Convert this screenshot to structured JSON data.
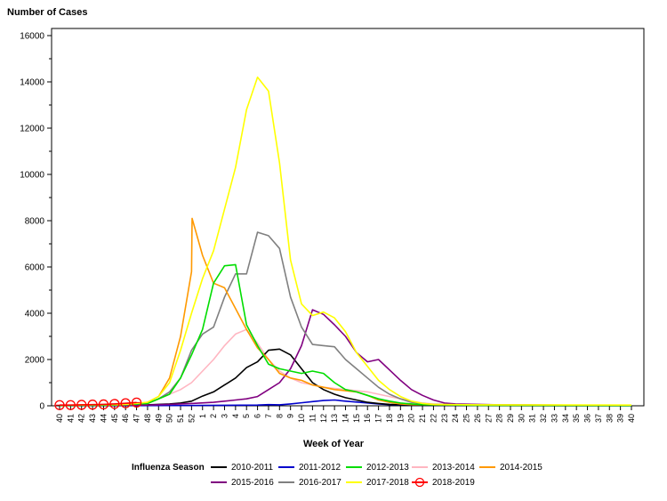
{
  "chart_data": {
    "type": "line",
    "ylabel": "Number of Cases",
    "xlabel": "Week of Year",
    "ylim": [
      0,
      16000
    ],
    "yticks": [
      0,
      2000,
      4000,
      6000,
      8000,
      10000,
      12000,
      14000,
      16000
    ],
    "grid": false,
    "legend_title": "Influenza Season",
    "legend_placement": "bottom",
    "weeks": [
      "40",
      "41",
      "42",
      "43",
      "44",
      "45",
      "46",
      "47",
      "48",
      "49",
      "50",
      "51",
      "52",
      "1",
      "2",
      "3",
      "4",
      "5",
      "6",
      "7",
      "8",
      "9",
      "10",
      "11",
      "12",
      "13",
      "14",
      "15",
      "16",
      "17",
      "18",
      "19",
      "20",
      "21",
      "22",
      "23",
      "24",
      "25",
      "26",
      "27",
      "28",
      "29",
      "30",
      "31",
      "32",
      "33",
      "34",
      "35",
      "36",
      "37",
      "38",
      "39",
      "40"
    ],
    "series": [
      {
        "name": "2010-2011",
        "color": "#000000",
        "values": [
          [
            0,
            5
          ],
          [
            3,
            10
          ],
          [
            6,
            20
          ],
          [
            8,
            40
          ],
          [
            9,
            60
          ],
          [
            10,
            80
          ],
          [
            11,
            120
          ],
          [
            12,
            200
          ],
          [
            13,
            420
          ],
          [
            14,
            600
          ],
          [
            15,
            900
          ],
          [
            16,
            1200
          ],
          [
            17,
            1650
          ],
          [
            18,
            1900
          ],
          [
            19,
            2400
          ],
          [
            20,
            2450
          ],
          [
            21,
            2200
          ],
          [
            22,
            1600
          ],
          [
            23,
            1000
          ],
          [
            24,
            700
          ],
          [
            25,
            500
          ],
          [
            26,
            350
          ],
          [
            27,
            250
          ],
          [
            28,
            150
          ],
          [
            29,
            100
          ],
          [
            30,
            60
          ],
          [
            31,
            40
          ],
          [
            32,
            30
          ],
          [
            33,
            20
          ],
          [
            38,
            10
          ],
          [
            52,
            5
          ]
        ]
      },
      {
        "name": "2011-2012",
        "color": "#0000cc",
        "values": [
          [
            0,
            5
          ],
          [
            10,
            10
          ],
          [
            15,
            20
          ],
          [
            18,
            30
          ],
          [
            19,
            50
          ],
          [
            20,
            40
          ],
          [
            21,
            80
          ],
          [
            22,
            130
          ],
          [
            23,
            180
          ],
          [
            24,
            230
          ],
          [
            25,
            250
          ],
          [
            26,
            200
          ],
          [
            27,
            160
          ],
          [
            28,
            120
          ],
          [
            29,
            80
          ],
          [
            30,
            50
          ],
          [
            31,
            30
          ],
          [
            33,
            20
          ],
          [
            38,
            10
          ],
          [
            52,
            5
          ]
        ]
      },
      {
        "name": "2012-2013",
        "color": "#00dd00",
        "values": [
          [
            0,
            10
          ],
          [
            4,
            20
          ],
          [
            6,
            50
          ],
          [
            8,
            100
          ],
          [
            9,
            300
          ],
          [
            10,
            500
          ],
          [
            11,
            1200
          ],
          [
            12,
            2200
          ],
          [
            13,
            3300
          ],
          [
            14,
            5300
          ],
          [
            15,
            6050
          ],
          [
            16,
            6100
          ],
          [
            17,
            3500
          ],
          [
            18,
            2600
          ],
          [
            19,
            1800
          ],
          [
            20,
            1600
          ],
          [
            21,
            1500
          ],
          [
            22,
            1400
          ],
          [
            23,
            1500
          ],
          [
            24,
            1400
          ],
          [
            25,
            1000
          ],
          [
            26,
            700
          ],
          [
            27,
            600
          ],
          [
            28,
            450
          ],
          [
            29,
            300
          ],
          [
            30,
            200
          ],
          [
            31,
            120
          ],
          [
            32,
            80
          ],
          [
            33,
            50
          ],
          [
            38,
            20
          ],
          [
            52,
            10
          ]
        ]
      },
      {
        "name": "2013-2014",
        "color": "#ffb6c1",
        "values": [
          [
            0,
            20
          ],
          [
            6,
            50
          ],
          [
            8,
            100
          ],
          [
            9,
            300
          ],
          [
            10,
            500
          ],
          [
            11,
            700
          ],
          [
            12,
            1000
          ],
          [
            13,
            1500
          ],
          [
            14,
            2000
          ],
          [
            15,
            2600
          ],
          [
            16,
            3100
          ],
          [
            17,
            3300
          ],
          [
            18,
            2700
          ],
          [
            19,
            2000
          ],
          [
            20,
            1500
          ],
          [
            21,
            1200
          ],
          [
            22,
            1000
          ],
          [
            23,
            900
          ],
          [
            24,
            800
          ],
          [
            25,
            750
          ],
          [
            26,
            700
          ],
          [
            27,
            650
          ],
          [
            28,
            600
          ],
          [
            29,
            500
          ],
          [
            30,
            400
          ],
          [
            31,
            300
          ],
          [
            32,
            200
          ],
          [
            33,
            120
          ],
          [
            34,
            80
          ],
          [
            38,
            40
          ],
          [
            52,
            20
          ]
        ]
      },
      {
        "name": "2014-2015",
        "color": "#ff9900",
        "values": [
          [
            0,
            20
          ],
          [
            5,
            40
          ],
          [
            7,
            80
          ],
          [
            8,
            150
          ],
          [
            9,
            400
          ],
          [
            10,
            1200
          ],
          [
            11,
            3000
          ],
          [
            12,
            5800
          ],
          [
            12.05,
            8100
          ],
          [
            13,
            6500
          ],
          [
            14,
            5300
          ],
          [
            15,
            5100
          ],
          [
            16,
            4200
          ],
          [
            17,
            3300
          ],
          [
            18,
            2500
          ],
          [
            19,
            2000
          ],
          [
            20,
            1400
          ],
          [
            21,
            1200
          ],
          [
            22,
            1100
          ],
          [
            23,
            900
          ],
          [
            24,
            800
          ],
          [
            25,
            700
          ],
          [
            26,
            650
          ],
          [
            27,
            600
          ],
          [
            28,
            450
          ],
          [
            29,
            250
          ],
          [
            30,
            150
          ],
          [
            31,
            80
          ],
          [
            32,
            50
          ],
          [
            38,
            30
          ],
          [
            52,
            20
          ]
        ]
      },
      {
        "name": "2015-2016",
        "color": "#800080",
        "values": [
          [
            0,
            10
          ],
          [
            8,
            30
          ],
          [
            10,
            60
          ],
          [
            12,
            100
          ],
          [
            14,
            150
          ],
          [
            15,
            200
          ],
          [
            16,
            250
          ],
          [
            17,
            300
          ],
          [
            18,
            400
          ],
          [
            19,
            700
          ],
          [
            20,
            1000
          ],
          [
            21,
            1600
          ],
          [
            22,
            2600
          ],
          [
            23,
            4150
          ],
          [
            24,
            3950
          ],
          [
            25,
            3500
          ],
          [
            26,
            3000
          ],
          [
            27,
            2300
          ],
          [
            28,
            1900
          ],
          [
            29,
            2000
          ],
          [
            30,
            1550
          ],
          [
            31,
            1100
          ],
          [
            32,
            700
          ],
          [
            33,
            450
          ],
          [
            34,
            250
          ],
          [
            35,
            120
          ],
          [
            36,
            80
          ],
          [
            40,
            40
          ],
          [
            52,
            10
          ]
        ]
      },
      {
        "name": "2016-2017",
        "color": "#808080",
        "values": [
          [
            0,
            20
          ],
          [
            6,
            50
          ],
          [
            8,
            100
          ],
          [
            9,
            300
          ],
          [
            10,
            600
          ],
          [
            11,
            1200
          ],
          [
            12,
            2400
          ],
          [
            13,
            3100
          ],
          [
            14,
            3400
          ],
          [
            15,
            4700
          ],
          [
            16,
            5700
          ],
          [
            17,
            5700
          ],
          [
            18,
            7500
          ],
          [
            19,
            7350
          ],
          [
            20,
            6800
          ],
          [
            21,
            4700
          ],
          [
            22,
            3400
          ],
          [
            23,
            2650
          ],
          [
            24,
            2600
          ],
          [
            25,
            2550
          ],
          [
            26,
            2000
          ],
          [
            27,
            1600
          ],
          [
            28,
            1200
          ],
          [
            29,
            800
          ],
          [
            30,
            500
          ],
          [
            31,
            300
          ],
          [
            32,
            150
          ],
          [
            33,
            100
          ],
          [
            34,
            60
          ],
          [
            38,
            40
          ],
          [
            52,
            20
          ]
        ]
      },
      {
        "name": "2017-2018",
        "color": "#ffff00",
        "values": [
          [
            0,
            20
          ],
          [
            6,
            60
          ],
          [
            8,
            150
          ],
          [
            9,
            400
          ],
          [
            10,
            1000
          ],
          [
            11,
            2400
          ],
          [
            12,
            4000
          ],
          [
            13,
            5500
          ],
          [
            14,
            6700
          ],
          [
            15,
            8500
          ],
          [
            16,
            10300
          ],
          [
            17,
            12800
          ],
          [
            18,
            14200
          ],
          [
            19,
            13600
          ],
          [
            20,
            10500
          ],
          [
            21,
            6300
          ],
          [
            22,
            4400
          ],
          [
            23,
            3900
          ],
          [
            24,
            4050
          ],
          [
            25,
            3800
          ],
          [
            26,
            3200
          ],
          [
            27,
            2300
          ],
          [
            28,
            1700
          ],
          [
            29,
            1100
          ],
          [
            30,
            700
          ],
          [
            31,
            400
          ],
          [
            32,
            200
          ],
          [
            33,
            100
          ],
          [
            34,
            60
          ],
          [
            38,
            40
          ],
          [
            52,
            30
          ]
        ]
      },
      {
        "name": "2018-2019",
        "color": "#ff0000",
        "values": [
          [
            0,
            30
          ],
          [
            1,
            30
          ],
          [
            2,
            40
          ],
          [
            3,
            50
          ],
          [
            4,
            60
          ],
          [
            5,
            80
          ],
          [
            6,
            110
          ],
          [
            7,
            140
          ]
        ]
      }
    ]
  }
}
